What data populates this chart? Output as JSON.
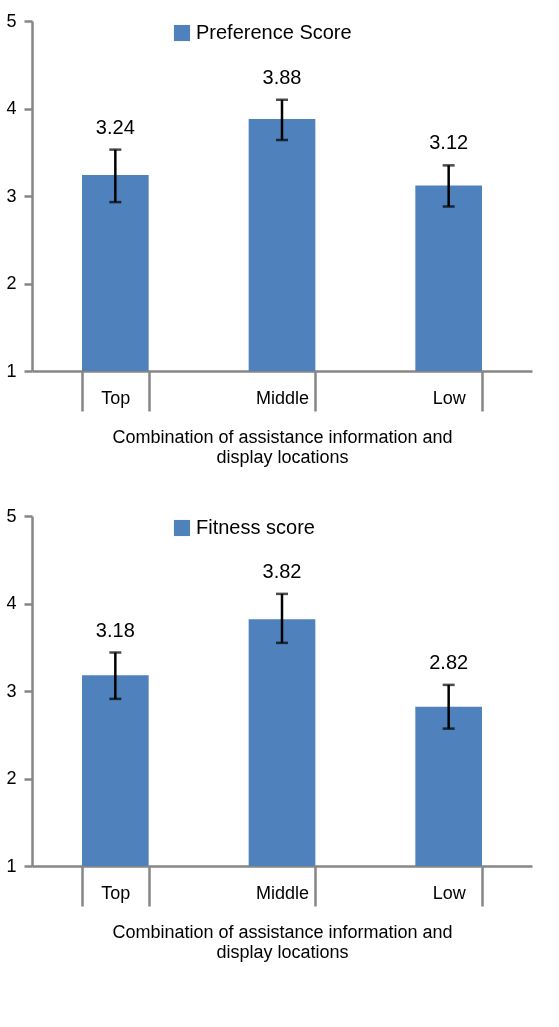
{
  "chart_data": [
    {
      "type": "bar",
      "categories": [
        "Top",
        "Middle",
        "Low"
      ],
      "xlabel": "Combination of assistance information and display locations",
      "ylim": [
        1,
        5
      ],
      "yticks": [
        1,
        2,
        3,
        4,
        5
      ],
      "legend": "top",
      "data_labels": true,
      "grid": false,
      "series": [
        {
          "name": "Preference Score",
          "color": "#4f81bd",
          "values": [
            3.24,
            3.88,
            3.12
          ],
          "errors": [
            [
              2.93,
              3.53
            ],
            [
              3.64,
              4.1
            ],
            [
              2.88,
              3.35
            ]
          ]
        }
      ]
    },
    {
      "type": "bar",
      "categories": [
        "Top",
        "Middle",
        "Low"
      ],
      "xlabel": "Combination of assistance information and display locations",
      "ylim": [
        1,
        5
      ],
      "yticks": [
        1,
        2,
        3,
        4,
        5
      ],
      "legend": "top",
      "data_labels": true,
      "grid": false,
      "series": [
        {
          "name": "Fitness score",
          "color": "#4f81bd",
          "values": [
            3.18,
            3.82,
            2.82
          ],
          "errors": [
            [
              2.91,
              3.44
            ],
            [
              3.55,
              4.11
            ],
            [
              2.57,
              3.07
            ]
          ]
        }
      ]
    }
  ]
}
